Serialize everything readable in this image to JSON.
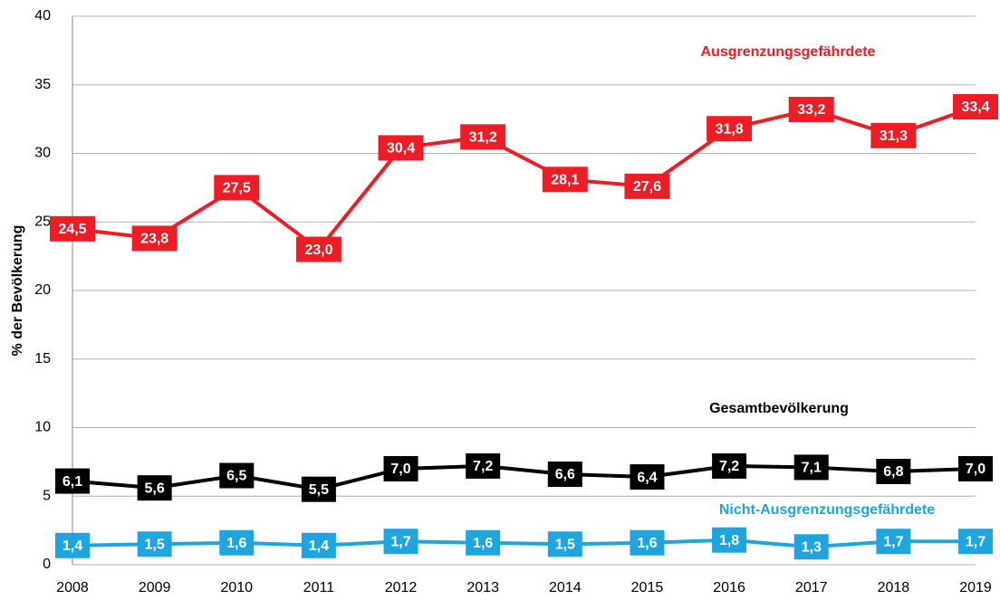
{
  "chart_data": {
    "type": "line",
    "y_label": "% der Bevölkerung",
    "x": [
      2008,
      2009,
      2010,
      2011,
      2012,
      2013,
      2014,
      2015,
      2016,
      2017,
      2018,
      2019
    ],
    "xlim": [
      2008,
      2019
    ],
    "xticks": [
      2008,
      2009,
      2010,
      2011,
      2012,
      2013,
      2014,
      2015,
      2016,
      2017,
      2018,
      2019
    ],
    "ylim": [
      0,
      40
    ],
    "yticks": [
      0,
      5,
      10,
      15,
      20,
      25,
      30,
      35,
      40
    ],
    "grid": true,
    "series": [
      {
        "name": "Ausgrenzungsgefährdete",
        "color": "#ee1c25",
        "values": [
          24.5,
          23.8,
          27.5,
          23.0,
          30.4,
          31.2,
          28.1,
          27.6,
          31.8,
          33.2,
          31.3,
          33.4
        ],
        "value_labels": [
          "24,5",
          "23,8",
          "27,5",
          "23,0",
          "30,4",
          "31,2",
          "28,1",
          "27,6",
          "31,8",
          "33,2",
          "31,3",
          "33,4"
        ]
      },
      {
        "name": "Gesamtbevölkerung",
        "color": "#000000",
        "values": [
          6.1,
          5.6,
          6.5,
          5.5,
          7.0,
          7.2,
          6.6,
          6.4,
          7.2,
          7.1,
          6.8,
          7.0
        ],
        "value_labels": [
          "6,1",
          "5,6",
          "6,5",
          "5,5",
          "7,0",
          "7,2",
          "6,6",
          "6,4",
          "7,2",
          "7,1",
          "6,8",
          "7,0"
        ]
      },
      {
        "name": "Nicht-Ausgrenzungsgefährdete",
        "color": "#1ea5e0",
        "values": [
          1.4,
          1.5,
          1.6,
          1.4,
          1.7,
          1.6,
          1.5,
          1.6,
          1.8,
          1.3,
          1.7,
          1.7
        ],
        "value_labels": [
          "1,4",
          "1,5",
          "1,6",
          "1,4",
          "1,7",
          "1,6",
          "1,5",
          "1,6",
          "1,8",
          "1,3",
          "1,7",
          "1,7"
        ]
      }
    ]
  }
}
